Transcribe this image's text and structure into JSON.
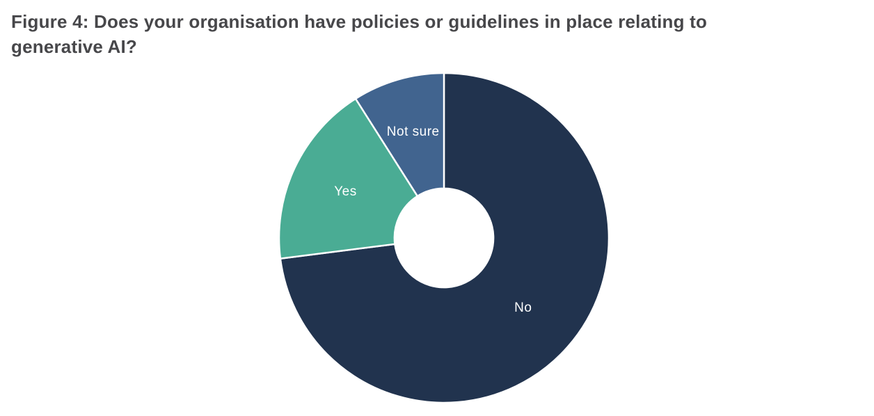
{
  "page": {
    "background_color": "#ffffff"
  },
  "header": {
    "title": "Figure 4: Does your organisation have policies or guidelines in place relating to generative AI?",
    "title_lines": [
      "Figure 4: Does your organisation have policies or guidelines in place relating to",
      "generative AI?"
    ],
    "title_color": "#47474a"
  },
  "chart_data": {
    "type": "pie",
    "subtype": "donut",
    "title": "Figure 4: Does your organisation have policies or guidelines in place relating to generative AI?",
    "categories": [
      "No",
      "Yes",
      "Not sure"
    ],
    "values": [
      73,
      18,
      9
    ],
    "unit": "percent",
    "colors": [
      "#21334e",
      "#4aac94",
      "#41648f"
    ],
    "label_color": "#ffffff",
    "separator_color": "#ffffff",
    "start_angle_deg": 0,
    "direction": "clockwise",
    "inner_radius_ratio": 0.3,
    "label_radius_ratios": [
      0.64,
      0.66,
      0.67
    ],
    "legend": "none",
    "data_labels": "category names inside slices, no numeric labels shown"
  }
}
